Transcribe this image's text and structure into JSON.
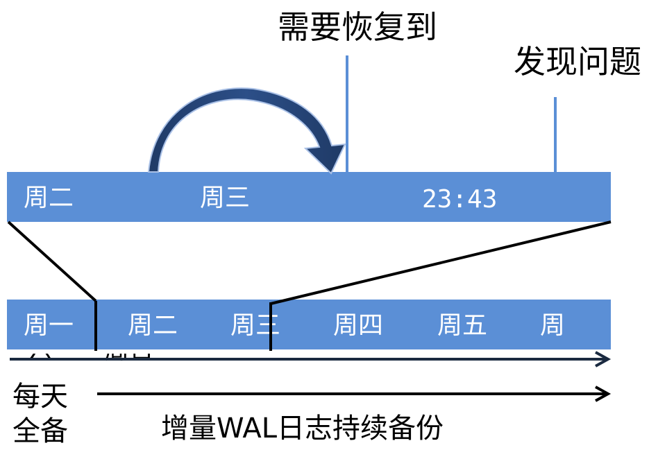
{
  "annotations": {
    "restore_to": "需要恢复到",
    "problem_found": "发现问题"
  },
  "top_bar": {
    "labels": [
      "周二",
      "周三",
      "23:43"
    ]
  },
  "week_bar": {
    "labels": [
      "周一",
      "周二",
      "周三",
      "周四",
      "周五",
      "周"
    ]
  },
  "clipped_row": {
    "labels": [
      "六",
      "周日"
    ]
  },
  "bottom": {
    "daily_full_backup_line1": "每天",
    "daily_full_backup_line2": "全备",
    "incremental_wal": "增量WAL日志持续备份"
  },
  "colors": {
    "bar": "#5b8fd6",
    "arc_dark": "#1f3a66",
    "marker": "#5b8fd6"
  }
}
